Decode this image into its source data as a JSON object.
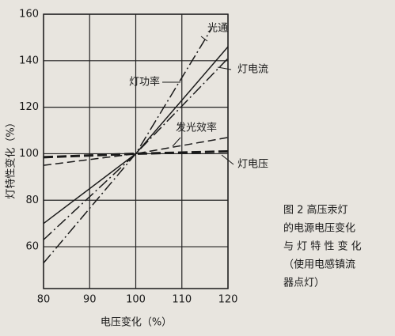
{
  "chart_data": {
    "type": "line",
    "xlabel": "电压变化（%）",
    "ylabel": "灯特性变化（%）",
    "xlim": [
      80,
      120
    ],
    "ylim": [
      42,
      160
    ],
    "xticks": [
      80,
      90,
      100,
      110,
      120
    ],
    "yticks": [
      60,
      80,
      100,
      120,
      140,
      160
    ],
    "grid": true,
    "series": [
      {
        "name": "光通",
        "color": "#1a1a1a",
        "linestyle": "dashdot",
        "x": [
          80,
          100,
          116.5
        ],
        "values": [
          53,
          100,
          154
        ]
      },
      {
        "name": "灯电流",
        "color": "#1a1a1a",
        "linestyle": "solid",
        "x": [
          80,
          100,
          120
        ],
        "values": [
          70,
          100,
          146
        ]
      },
      {
        "name": "灯功率",
        "color": "#1a1a1a",
        "linestyle": "dashdot",
        "x": [
          80,
          100,
          120
        ],
        "values": [
          63,
          100,
          141
        ]
      },
      {
        "name": "发光效率",
        "color": "#1a1a1a",
        "linestyle": "dashed",
        "x": [
          80,
          100,
          120
        ],
        "values": [
          95,
          100,
          107
        ]
      },
      {
        "name": "灯电压",
        "color": "#1a1a1a",
        "linestyle": "thickdashed",
        "x": [
          80,
          100,
          120
        ],
        "values": [
          98.5,
          100,
          101
        ]
      }
    ],
    "caption": [
      "图 2  高压汞灯",
      "的电源电压变化",
      "与 灯 特 性 变 化",
      "（使用电感镇流",
      "器点灯）"
    ]
  }
}
